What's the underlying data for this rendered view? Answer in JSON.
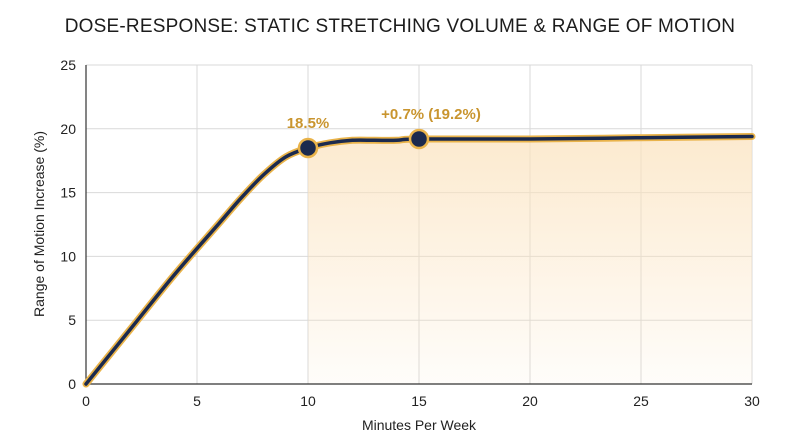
{
  "chart_data": {
    "type": "line",
    "title": "DOSE-RESPONSE: STATIC STRETCHING VOLUME & RANGE OF MOTION",
    "xlabel": "Minutes Per Week",
    "ylabel": "Range of Motion Increase (%)",
    "xlim": [
      0,
      30
    ],
    "ylim": [
      0,
      25
    ],
    "xticks": [
      0,
      5,
      10,
      15,
      20,
      25,
      30
    ],
    "yticks": [
      0,
      5,
      10,
      15,
      20,
      25
    ],
    "grid": true,
    "series": [
      {
        "x": [
          0,
          2,
          4,
          6,
          7,
          8,
          9,
          10,
          11,
          12,
          13,
          14,
          15,
          20,
          25,
          30
        ],
        "y": [
          0,
          4.3,
          8.6,
          12.6,
          14.6,
          16.4,
          17.8,
          18.5,
          18.9,
          19.1,
          19.1,
          19.1,
          19.2,
          19.2,
          19.3,
          19.4
        ]
      }
    ],
    "highlight_points": [
      {
        "x": 10,
        "y": 18.5,
        "label": "18.5%"
      },
      {
        "x": 15,
        "y": 19.2,
        "label": "+0.7% (19.2%)"
      }
    ],
    "shaded_region": {
      "x_start": 10,
      "x_end": 30
    },
    "colors": {
      "line": "#1b2a4e",
      "line_outline": "#e9b34a",
      "annotation": "#c9952f",
      "fill": "#fbe3bf",
      "grid": "#d9d9d9"
    }
  }
}
